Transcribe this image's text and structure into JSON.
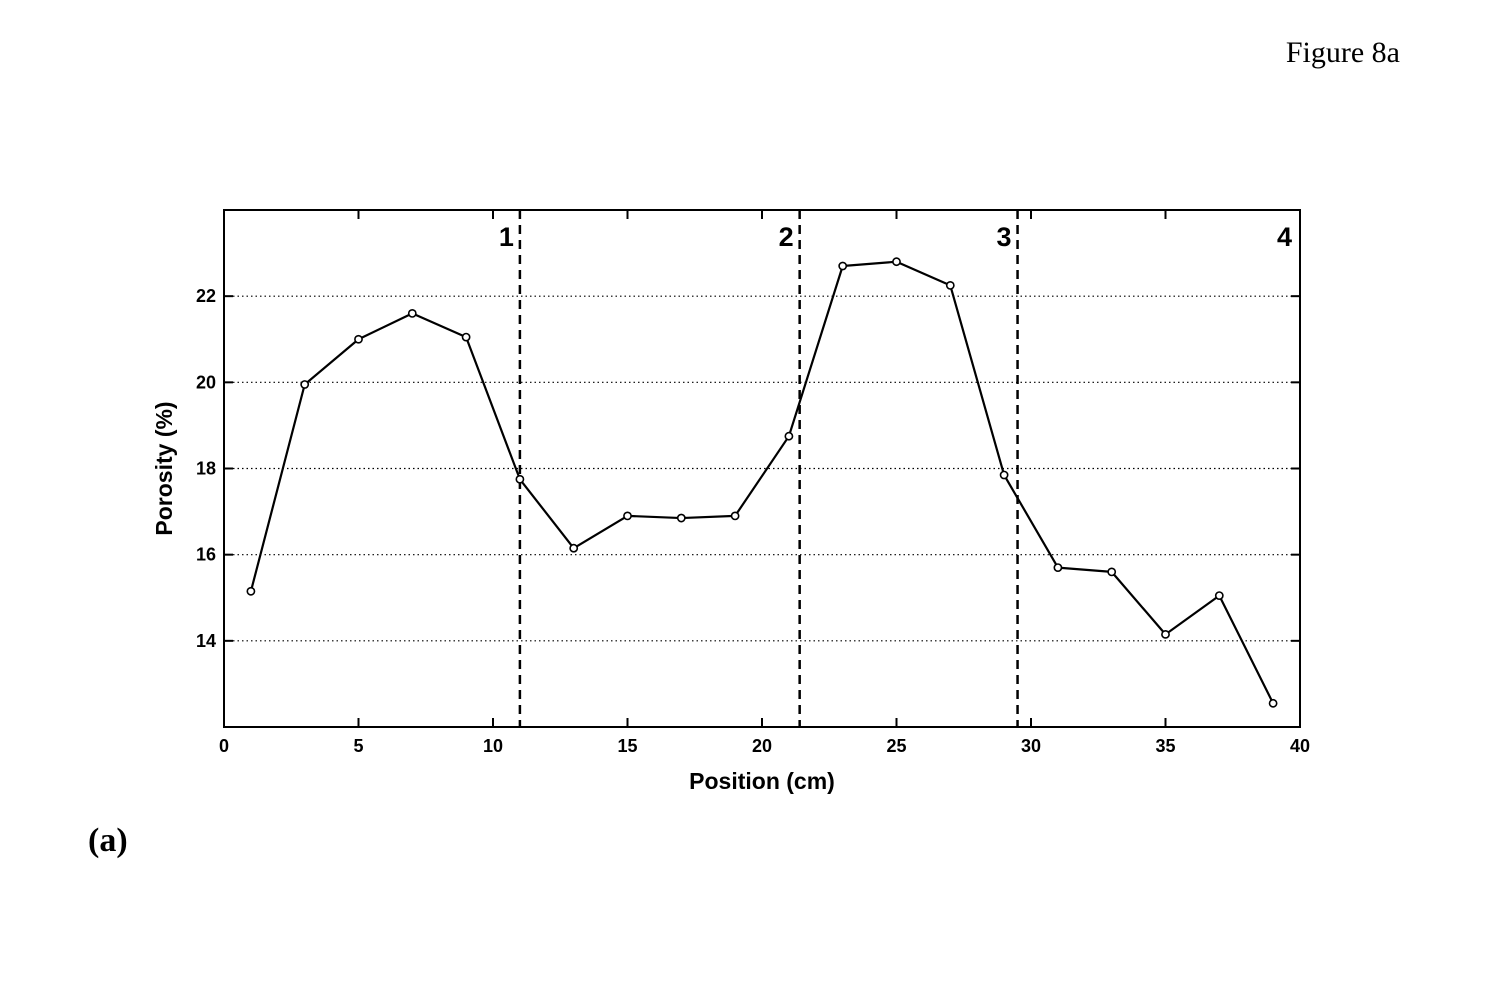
{
  "figure_label": "Figure 8a",
  "panel_label": "(a)",
  "chart_data": {
    "type": "line",
    "title": "",
    "xlabel": "Position (cm)",
    "ylabel": "Porosity (%)",
    "xlim": [
      0,
      40
    ],
    "ylim": [
      12,
      24
    ],
    "xticks": [
      0,
      5,
      10,
      15,
      20,
      25,
      30,
      35,
      40
    ],
    "yticks": [
      14,
      16,
      18,
      20,
      22
    ],
    "grid": "horizontal-dotted",
    "series": [
      {
        "x": [
          1,
          3,
          5,
          7,
          9,
          11,
          13,
          15,
          17,
          19,
          21,
          23,
          25,
          27,
          29,
          31,
          33,
          35,
          37,
          39
        ],
        "y": [
          15.15,
          19.95,
          21.0,
          21.6,
          21.05,
          17.75,
          16.15,
          16.9,
          16.85,
          16.9,
          18.75,
          22.7,
          22.8,
          22.25,
          17.85,
          15.7,
          15.6,
          14.15,
          15.05,
          12.55
        ]
      }
    ],
    "boundaries": [
      {
        "x": 11.0,
        "label": "1"
      },
      {
        "x": 21.4,
        "label": "2"
      },
      {
        "x": 29.5,
        "label": "3"
      },
      {
        "x": 40,
        "label": "4",
        "draw_line": false
      }
    ],
    "colors": {
      "line": "#000000",
      "marker": "#000000",
      "grid": "#000000"
    }
  }
}
